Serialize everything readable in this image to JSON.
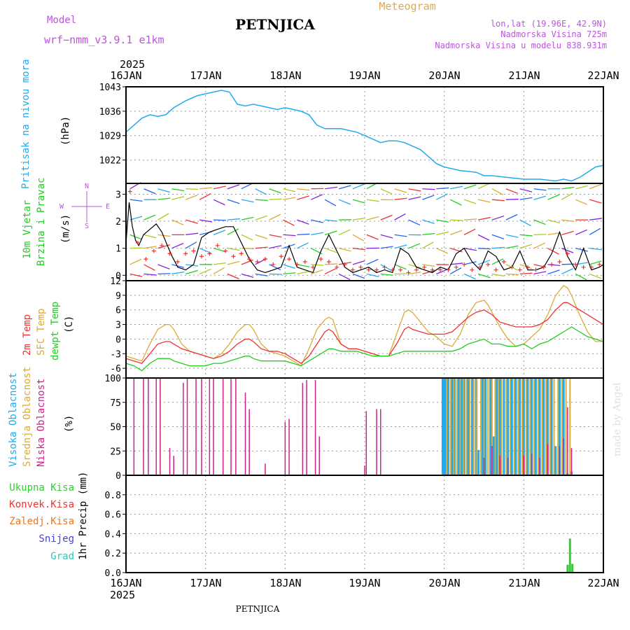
{
  "header": {
    "model_label": "Model",
    "model_name": "wrf−nmm_v3.9.1 e1km",
    "station": "PETNJICA",
    "title": "Meteogram",
    "lonlat": "lon,lat (19.96E, 42.9N)",
    "elevation": "Nadmorska Visina 725m",
    "model_elevation": "Nadmorska Visina u modelu 838.931m",
    "footer_station": "PETNJICA",
    "credit": "made by Angel"
  },
  "time_axis": {
    "year": "2025",
    "days": [
      "16JAN",
      "17JAN",
      "18JAN",
      "19JAN",
      "20JAN",
      "21JAN",
      "22JAN"
    ]
  },
  "colors": {
    "pressure": "#22aaee",
    "wind_speed": "#000000",
    "wind_gust": "#ee3333",
    "t2m": "#ee3333",
    "sfc": "#ddaa33",
    "dewpt": "#22cc22",
    "high_cloud": "#22aaee",
    "mid_cloud": "#ddaa33",
    "low_cloud": "#cc2288",
    "total_precip": "#33cc33",
    "conv_precip": "#ee3333",
    "frz_precip": "#ee7722",
    "snow": "#4444dd",
    "hail": "#22ccbb",
    "labels_top": "#bb55dd",
    "frame": "#000000"
  },
  "chart_data": [
    {
      "type": "line",
      "panel": "pressure",
      "ylabel": [
        "Pritisak na nivou mora",
        "(hPa)"
      ],
      "yticks": [
        "1043",
        "1036",
        "1029",
        "1022"
      ],
      "ylim": [
        1015.3,
        1043
      ],
      "x": [
        0,
        0.1,
        0.2,
        0.3,
        0.4,
        0.5,
        0.6,
        0.75,
        0.9,
        1.0,
        1.1,
        1.2,
        1.3,
        1.4,
        1.5,
        1.6,
        1.7,
        1.8,
        1.9,
        2.0,
        2.1,
        2.2,
        2.3,
        2.4,
        2.5,
        2.6,
        2.7,
        2.8,
        2.9,
        3.0,
        3.1,
        3.2,
        3.3,
        3.4,
        3.5,
        3.6,
        3.7,
        3.8,
        3.9,
        4.0,
        4.2,
        4.4,
        4.5,
        4.6,
        4.8,
        5.0,
        5.2,
        5.4,
        5.5,
        5.6,
        5.7,
        5.8,
        5.9,
        6.0
      ],
      "y": [
        1030,
        1032,
        1034,
        1035,
        1034.5,
        1035,
        1037,
        1039,
        1040.5,
        1041,
        1041.5,
        1042,
        1041.5,
        1038,
        1037.5,
        1038,
        1037.5,
        1037,
        1036.5,
        1037,
        1036.5,
        1036,
        1035,
        1032,
        1031,
        1031,
        1031,
        1030.5,
        1030,
        1029,
        1028,
        1027,
        1027.5,
        1027.5,
        1027,
        1026,
        1025,
        1023,
        1021,
        1020,
        1019,
        1018.5,
        1017.5,
        1017.5,
        1017,
        1016.5,
        1016.5,
        1016,
        1016.5,
        1016,
        1017,
        1018.5,
        1020,
        1020.5
      ]
    },
    {
      "type": "line",
      "panel": "wind",
      "ylabel": [
        "10m Vjetar",
        "Brzina i Pravac",
        "(m/s)"
      ],
      "compass": [
        "N",
        "W",
        "E",
        "S"
      ],
      "yticks": [
        "3",
        "2",
        "1",
        "0"
      ],
      "ylim": [
        -0.2,
        3.4
      ],
      "series": [
        {
          "x": [
            0,
            0.04,
            0.08,
            0.12,
            0.16,
            0.22,
            0.3,
            0.38,
            0.45,
            0.52,
            0.58,
            0.65,
            0.75,
            0.85,
            0.95,
            1.05,
            1.15,
            1.25,
            1.35,
            1.45,
            1.55,
            1.65,
            1.75,
            1.85,
            1.95,
            2.05,
            2.15,
            2.25,
            2.35,
            2.45,
            2.55,
            2.65,
            2.75,
            2.85,
            2.95,
            3.05,
            3.15,
            3.25,
            3.35,
            3.45,
            3.55,
            3.65,
            3.75,
            3.85,
            3.95,
            4.05,
            4.15,
            4.25,
            4.35,
            4.45,
            4.55,
            4.65,
            4.75,
            4.85,
            4.95,
            5.05,
            5.15,
            5.25,
            5.35,
            5.45,
            5.55,
            5.65,
            5.75,
            5.85,
            5.95,
            6.0
          ],
          "y": [
            1.2,
            2.7,
            1.8,
            1.3,
            1.1,
            1.5,
            1.7,
            1.9,
            1.6,
            1.1,
            0.7,
            0.3,
            0.2,
            0.4,
            1.4,
            1.6,
            1.7,
            1.8,
            1.8,
            1.2,
            0.6,
            0.2,
            0.1,
            0.2,
            0.3,
            1.1,
            0.3,
            0.2,
            0.1,
            0.9,
            1.5,
            0.9,
            0.3,
            0.1,
            0.2,
            0.3,
            0.1,
            0.2,
            0.1,
            1.0,
            0.8,
            0.3,
            0.2,
            0.1,
            0.3,
            0.2,
            0.8,
            1.0,
            0.5,
            0.2,
            0.9,
            0.7,
            0.2,
            0.3,
            0.9,
            0.2,
            0.2,
            0.3,
            0.8,
            1.6,
            0.7,
            0.2,
            1.0,
            0.2,
            0.3,
            0.4
          ]
        },
        {
          "x": [
            0.05,
            0.15,
            0.25,
            0.35,
            0.45,
            0.55,
            0.65,
            0.75,
            0.85,
            0.95,
            1.05,
            1.15,
            1.25,
            1.35,
            1.45,
            1.55,
            1.65,
            1.75,
            1.85,
            1.95,
            2.05,
            2.15,
            2.25,
            2.35,
            2.45,
            2.55,
            2.65,
            2.75,
            2.85,
            2.95,
            3.05,
            3.15,
            3.25,
            3.35,
            3.45,
            3.55,
            3.65,
            3.75,
            3.85,
            3.95,
            4.05,
            4.15,
            4.25,
            4.35,
            4.45,
            4.55,
            4.65,
            4.75,
            4.85,
            4.95,
            5.05,
            5.15,
            5.25,
            5.35,
            5.45,
            5.55,
            5.65,
            5.75,
            5.85,
            5.95
          ],
          "y": [
            3.1,
            1.2,
            0.6,
            0.9,
            1.1,
            0.8,
            0.5,
            0.8,
            0.9,
            0.7,
            0.8,
            1.1,
            0.9,
            0.7,
            0.8,
            0.6,
            0.5,
            0.6,
            0.4,
            0.7,
            0.6,
            0.4,
            0.5,
            0.3,
            0.6,
            0.5,
            0.3,
            0.4,
            0.2,
            0.3,
            0.2,
            0.2,
            0.3,
            0.2,
            0.2,
            0.1,
            0.2,
            0.3,
            0.2,
            0.2,
            0.2,
            0.3,
            0.4,
            0.2,
            0.3,
            0.4,
            0.2,
            0.5,
            0.3,
            0.2,
            0.3,
            0.2,
            0.3,
            0.4,
            0.5,
            0.8,
            0.4,
            0.3,
            0.3,
            0.4
          ]
        }
      ],
      "barb_rows": [
        3.2,
        2.8,
        2.05,
        1.5,
        1.0,
        0.4,
        0.05
      ]
    },
    {
      "type": "line",
      "panel": "temperature",
      "ylabel": [
        "2m Temp",
        "SFC Temp",
        "dewpt Temp",
        "(C)"
      ],
      "yticks": [
        "12",
        "9",
        "6",
        "3",
        "0",
        "-3",
        "-6"
      ],
      "ylim": [
        -8,
        12
      ],
      "x": [
        0,
        0.1,
        0.2,
        0.3,
        0.4,
        0.5,
        0.55,
        0.6,
        0.7,
        0.8,
        0.9,
        1.0,
        1.1,
        1.2,
        1.3,
        1.4,
        1.5,
        1.55,
        1.6,
        1.7,
        1.8,
        1.9,
        2.0,
        2.1,
        2.2,
        2.3,
        2.4,
        2.5,
        2.55,
        2.6,
        2.7,
        2.8,
        2.9,
        3.0,
        3.1,
        3.2,
        3.3,
        3.4,
        3.5,
        3.55,
        3.6,
        3.7,
        3.8,
        3.9,
        4.0,
        4.1,
        4.2,
        4.3,
        4.4,
        4.5,
        4.55,
        4.6,
        4.7,
        4.8,
        4.9,
        5.0,
        5.1,
        5.2,
        5.3,
        5.4,
        5.5,
        5.55,
        5.6,
        5.7,
        5.8,
        5.9,
        6.0
      ],
      "series": [
        {
          "y": [
            -4,
            -4.5,
            -5,
            -3,
            -1,
            -0.5,
            -0.5,
            -1,
            -2,
            -2.5,
            -3,
            -3.5,
            -4,
            -3.5,
            -2.5,
            -1,
            0,
            0,
            -0.5,
            -2,
            -2.5,
            -2.5,
            -3,
            -4,
            -5,
            -3.5,
            -1,
            1.5,
            2,
            1.5,
            -1,
            -2,
            -2,
            -2.5,
            -3,
            -3.5,
            -3.5,
            -1,
            2,
            2.5,
            2,
            1.5,
            1,
            1,
            1,
            1.5,
            3,
            4.5,
            5.5,
            6,
            5.5,
            5,
            3.5,
            3,
            2.5,
            2.5,
            2.5,
            3,
            4,
            6,
            7.5,
            7.5,
            7,
            6,
            5,
            4,
            3
          ]
        },
        {
          "y": [
            -3.5,
            -4,
            -4.5,
            -1,
            2,
            3,
            3,
            2,
            -1,
            -2.5,
            -3,
            -3.5,
            -4,
            -3,
            -1,
            1.5,
            3,
            3,
            2,
            -1,
            -2.5,
            -3,
            -3.5,
            -4.5,
            -5.5,
            -2,
            2,
            4,
            4.5,
            4,
            -1,
            -2,
            -2,
            -2.5,
            -3,
            -3.5,
            -3.5,
            1,
            5.5,
            6,
            5.5,
            3.5,
            1.5,
            0.5,
            -1,
            -1.5,
            1,
            5,
            7.5,
            8,
            7,
            5.5,
            2.5,
            0,
            -1.5,
            -1,
            0.5,
            2,
            5,
            9,
            11,
            10.5,
            9,
            5,
            1.5,
            -0.5,
            -0.5
          ]
        },
        {
          "y": [
            -5,
            -5.5,
            -6.5,
            -5,
            -4,
            -4,
            -4,
            -4.5,
            -5,
            -5.5,
            -5.5,
            -5.5,
            -5,
            -5,
            -4.5,
            -4,
            -3.5,
            -3.5,
            -4,
            -4.5,
            -4.5,
            -4.5,
            -4.5,
            -5,
            -5.5,
            -4.5,
            -3.5,
            -2.5,
            -2,
            -2,
            -2.5,
            -2.5,
            -2.5,
            -3,
            -3.5,
            -3.5,
            -3.5,
            -3,
            -2.5,
            -2.5,
            -2.5,
            -2.5,
            -2.5,
            -2.5,
            -2.5,
            -2.5,
            -2,
            -1,
            -0.5,
            0,
            -0.5,
            -1,
            -1,
            -1.5,
            -1.5,
            -1,
            -2,
            -1,
            -0.5,
            0.5,
            1.5,
            2,
            2.5,
            1.5,
            0.5,
            0,
            -0.5
          ]
        }
      ]
    },
    {
      "type": "bar",
      "panel": "cloud",
      "ylabel": [
        "Visoka Oblacnost",
        "Srednja Oblacnost",
        "Niska Oblacnost",
        "(%)"
      ],
      "yticks": [
        "100",
        "75",
        "50",
        "25",
        "0"
      ],
      "ylim": [
        0,
        100
      ],
      "low_x": [
        0.1,
        0.22,
        0.28,
        0.38,
        0.43,
        0.55,
        0.6,
        0.72,
        0.77,
        0.88,
        0.95,
        1.05,
        1.1,
        1.22,
        1.32,
        1.38,
        1.5,
        1.55,
        1.75,
        2.0,
        2.05,
        2.22,
        2.27,
        2.38,
        2.43,
        3.0,
        3.02,
        3.15,
        3.2,
        4.5,
        4.6,
        4.7,
        4.8,
        5.0,
        5.1,
        5.2,
        5.3,
        5.45,
        5.5,
        5.55,
        5.6
      ],
      "low_y": [
        100,
        100,
        100,
        100,
        100,
        28,
        20,
        95,
        100,
        100,
        100,
        100,
        100,
        100,
        100,
        100,
        85,
        68,
        12,
        55,
        58,
        95,
        98,
        98,
        40,
        10,
        66,
        68,
        68,
        18,
        30,
        20,
        18,
        20,
        22,
        18,
        32,
        30,
        38,
        70,
        28
      ],
      "high_x": [
        3.98,
        4.0,
        4.02,
        4.05,
        4.1,
        4.13,
        4.18,
        4.22,
        4.25,
        4.3,
        4.35,
        4.4,
        4.43,
        4.48,
        4.52,
        4.58,
        4.62,
        4.66,
        4.7,
        4.75,
        4.8,
        4.85,
        4.9,
        4.95,
        5.0,
        5.05,
        5.1,
        5.15,
        5.2,
        5.25,
        5.3,
        5.35,
        5.4,
        5.45,
        5.5,
        5.55,
        5.6
      ],
      "high_y": [
        100,
        100,
        100,
        100,
        100,
        100,
        100,
        100,
        100,
        100,
        100,
        100,
        26,
        100,
        100,
        100,
        40,
        100,
        100,
        100,
        100,
        100,
        100,
        100,
        100,
        100,
        100,
        100,
        100,
        100,
        100,
        100,
        30,
        100,
        100,
        2,
        4
      ],
      "mid_x": [
        4.03,
        4.08,
        4.12,
        4.16,
        4.2,
        4.24,
        4.28,
        4.32,
        4.37,
        4.41,
        4.46,
        4.5,
        4.55,
        4.6,
        4.64,
        4.68,
        4.72,
        4.78,
        4.83,
        4.88,
        4.93,
        4.98,
        5.03,
        5.08,
        5.13,
        5.18,
        5.23,
        5.28,
        5.33,
        5.38,
        5.43,
        5.48,
        5.53,
        5.58
      ],
      "mid_y": [
        100,
        100,
        100,
        100,
        100,
        100,
        100,
        100,
        100,
        100,
        100,
        100,
        100,
        100,
        100,
        100,
        100,
        100,
        100,
        100,
        100,
        100,
        100,
        100,
        100,
        100,
        100,
        100,
        100,
        100,
        100,
        100,
        100,
        100
      ]
    },
    {
      "type": "bar",
      "panel": "precipitation",
      "legend": [
        "Ukupna Kisa",
        "Konvek.Kisa",
        "Zaledj.Kisa",
        "Snijeg",
        "Grad"
      ],
      "ylabel": [
        "1hr Precip (mm)"
      ],
      "yticks": [
        "0.8",
        "0.6",
        "0.4",
        "0.2",
        "0.0"
      ],
      "ylim": [
        0,
        1.0
      ],
      "x": [
        5.55,
        5.58,
        5.61
      ],
      "y": [
        0.08,
        0.35,
        0.09
      ]
    }
  ]
}
